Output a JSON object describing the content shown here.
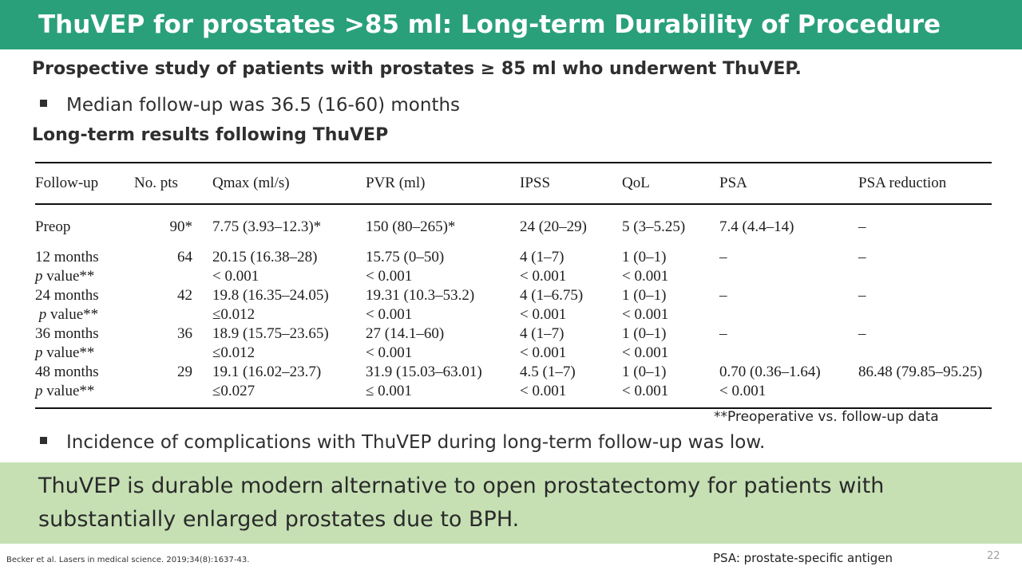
{
  "slide": {
    "title": "ThuVEP for prostates >85 ml: Long-term Durability of Procedure",
    "subtitle": "Prospective study of patients with prostates ≥ 85 ml who underwent ThuVEP.",
    "bullet_1": "Median follow-up was 36.5 (16-60) months",
    "section_heading": "Long-term results following ThuVEP",
    "footnote": "**Preoperative vs. follow-up data",
    "bullet_2": "Incidence of complications with ThuVEP during long-term follow-up was low.",
    "conclusion": "ThuVEP is durable modern alternative to open prostatectomy for patients with substantially enlarged prostates due to BPH.",
    "citation": "Becker et al. Lasers in medical science. 2019;34(8):1637-43.",
    "abbreviation": "PSA: prostate-specific antigen",
    "page_number": "22"
  },
  "table": {
    "headers": [
      "Follow-up",
      "No. pts",
      "Qmax (ml/s)",
      "PVR (ml)",
      "IPSS",
      "QoL",
      "PSA",
      "PSA reduction"
    ],
    "preop": [
      "Preop",
      "90*",
      "7.75 (3.93–12.3)*",
      "150 (80–265)*",
      "24 (20–29)",
      "5 (3–5.25)",
      "7.4 (4.4–14)",
      "–"
    ],
    "m12": [
      "12 months",
      "64",
      "20.15 (16.38–28)",
      "15.75 (0–50)",
      "4 (1–7)",
      "1 (0–1)",
      "–",
      "–"
    ],
    "m12p": [
      "p",
      " value**",
      "< 0.001",
      "< 0.001",
      "< 0.001",
      "< 0.001",
      "",
      ""
    ],
    "m24": [
      "24 months",
      "42",
      "19.8 (16.35–24.05)",
      "19.31 (10.3–53.2)",
      "4 (1–6.75)",
      "1 (0–1)",
      "–",
      "–"
    ],
    "m24p": [
      "p",
      " value**",
      "≤0.012",
      "< 0.001",
      "< 0.001",
      "< 0.001",
      "",
      ""
    ],
    "m36": [
      "36 months",
      "36",
      "18.9 (15.75–23.65)",
      "27 (14.1–60)",
      "4 (1–7)",
      "1 (0–1)",
      "–",
      "–"
    ],
    "m36p": [
      "p",
      " value**",
      "≤0.012",
      "< 0.001",
      "< 0.001",
      "< 0.001",
      "",
      ""
    ],
    "m48": [
      "48 months",
      "29",
      "19.1 (16.02–23.7)",
      "31.9 (15.03–63.01)",
      "4.5 (1–7)",
      "1 (0–1)",
      "0.70 (0.36–1.64)",
      "86.48 (79.85–95.25)"
    ],
    "m48p": [
      "p",
      " value**",
      "≤0.027",
      "≤ 0.001",
      "< 0.001",
      "< 0.001",
      "< 0.001",
      ""
    ]
  }
}
